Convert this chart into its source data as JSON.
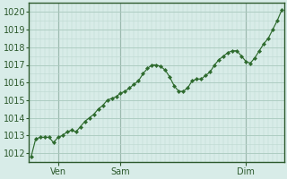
{
  "bg_color": "#cce8e0",
  "plot_bg_color": "#d8ece8",
  "line_color": "#2d6a2d",
  "marker_color": "#2d6a2d",
  "grid_major_color": "#a8c8bc",
  "grid_minor_color": "#bcd8d0",
  "ylim": [
    1011.5,
    1020.5
  ],
  "yticks": [
    1012,
    1013,
    1014,
    1015,
    1016,
    1017,
    1018,
    1019,
    1020
  ],
  "xtick_labels": [
    "Ven",
    "Sam",
    "Dim"
  ],
  "y_values": [
    1011.8,
    1012.8,
    1012.9,
    1012.9,
    1012.9,
    1012.6,
    1012.9,
    1013.0,
    1013.2,
    1013.3,
    1013.2,
    1013.5,
    1013.8,
    1014.0,
    1014.2,
    1014.5,
    1014.7,
    1015.0,
    1015.1,
    1015.2,
    1015.4,
    1015.5,
    1015.7,
    1015.9,
    1016.1,
    1016.5,
    1016.8,
    1017.0,
    1017.0,
    1016.9,
    1016.7,
    1016.3,
    1015.8,
    1015.5,
    1015.5,
    1015.7,
    1016.1,
    1016.2,
    1016.2,
    1016.4,
    1016.6,
    1017.0,
    1017.3,
    1017.5,
    1017.7,
    1017.8,
    1017.8,
    1017.5,
    1017.2,
    1017.1,
    1017.4,
    1017.8,
    1018.2,
    1018.5,
    1019.0,
    1019.5,
    1020.1
  ],
  "n_total": 57,
  "ven_idx": 6,
  "sam_idx": 20,
  "dim_idx": 48,
  "tick_fontsize": 7,
  "marker_size": 2.2,
  "linewidth": 0.85
}
